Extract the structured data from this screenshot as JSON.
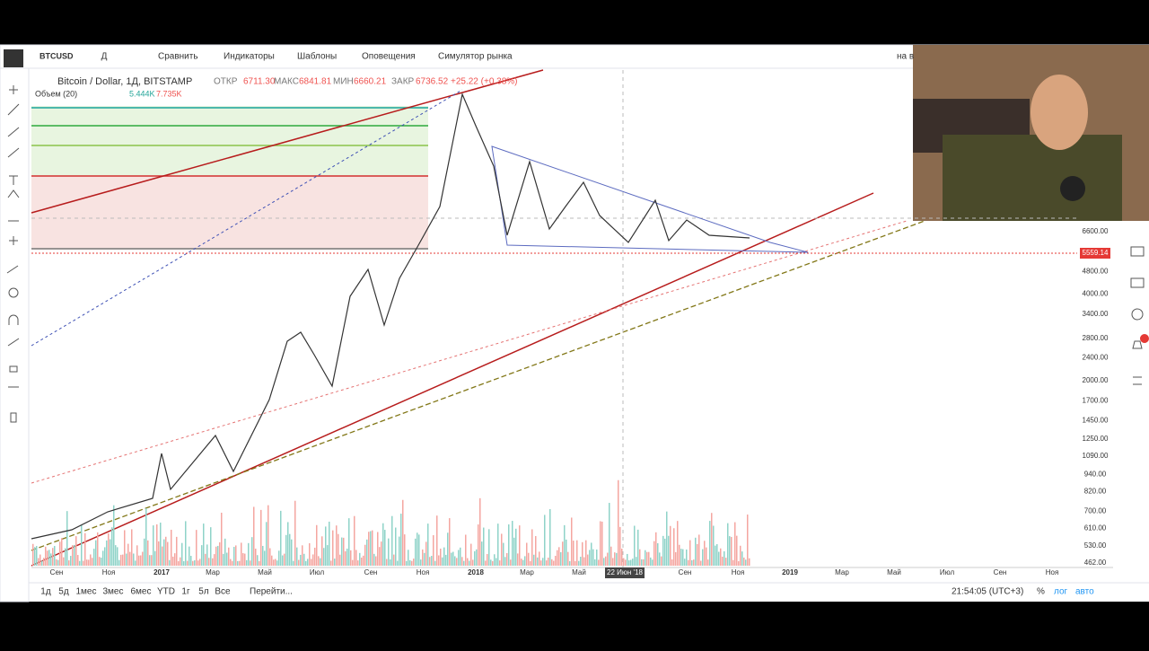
{
  "toolbar": {
    "symbol": "BTCUSD",
    "interval": "Д",
    "buttons": [
      "Сравнить",
      "Индикаторы",
      "Шаблоны",
      "Оповещения",
      "Симулятор рынка"
    ],
    "right": "на в"
  },
  "legend": {
    "title": "Bitcoin / Dollar, 1Д, BITSTAMP",
    "open_label": "ОТКР",
    "open": "6711.30",
    "high_label": "МАКС",
    "high": "6841.81",
    "low_label": "МИН",
    "low": "6660.21",
    "close_label": "ЗАКР",
    "close": "6736.52",
    "change": "+25.22 (+0.38%)"
  },
  "volume": {
    "label": "Объем (20)",
    "value_1": "5.444K",
    "value_2": "7.735K"
  },
  "price_axis": [
    "6600.00",
    "4800.00",
    "4000.00",
    "3400.00",
    "2800.00",
    "2400.00",
    "2000.00",
    "1700.00",
    "1450.00",
    "1250.00",
    "1090.00",
    "940.00",
    "820.00",
    "700.00",
    "610.00",
    "530.00",
    "462.00"
  ],
  "current_price": "5559.14",
  "time_axis": [
    "Сен",
    "Ноя",
    "2017",
    "Мар",
    "Май",
    "Июл",
    "Сен",
    "Ноя",
    "2018",
    "Мар",
    "Май",
    "22 Июн '18",
    "Сен",
    "Ноя",
    "2019",
    "Мар",
    "Май",
    "Июл",
    "Сен",
    "Ноя"
  ],
  "bottom": {
    "ranges": [
      "1д",
      "5д",
      "1мес",
      "3мес",
      "6мес",
      "YTD",
      "1г",
      "5л",
      "Все"
    ],
    "goto": "Перейти...",
    "clock": "21:54:05 (UTC+3)",
    "percent": "%",
    "log": "лог",
    "auto": "авто"
  }
}
